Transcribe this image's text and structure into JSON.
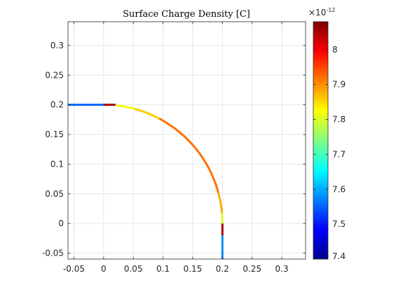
{
  "chart_data": {
    "type": "line",
    "title": "Surface Charge Density [C]",
    "xlabel": "",
    "ylabel": "",
    "xlim": [
      -0.06,
      0.34
    ],
    "ylim": [
      -0.06,
      0.34
    ],
    "grid": true,
    "x_ticks": [
      -0.05,
      0,
      0.05,
      0.1,
      0.15,
      0.2,
      0.25,
      0.3
    ],
    "x_tick_labels": [
      "-0.05",
      "0",
      "0.05",
      "0.1",
      "0.15",
      "0.2",
      "0.25",
      "0.3"
    ],
    "y_ticks": [
      -0.05,
      0,
      0.05,
      0.1,
      0.15,
      0.2,
      0.25,
      0.3
    ],
    "y_tick_labels": [
      "-0.05",
      "0",
      "0.05",
      "0.1",
      "0.15",
      "0.2",
      "0.25",
      "0.3"
    ],
    "colormap": "jet",
    "colorbar": {
      "min": 7.4,
      "max": 8.08,
      "ticks": [
        7.4,
        7.5,
        7.6,
        7.7,
        7.8,
        7.9,
        8
      ],
      "tick_labels": [
        "7.4",
        "7.5",
        "7.6",
        "7.7",
        "7.8",
        "7.9",
        "8"
      ],
      "exponent_label": "×10",
      "exponent_power": "-12"
    },
    "segments": [
      {
        "points": [
          [
            -0.06,
            0.2
          ],
          [
            0.0,
            0.2
          ]
        ],
        "value": 7.55
      },
      {
        "points": [
          [
            0.0,
            0.2
          ],
          [
            0.02,
            0.2
          ]
        ],
        "value": 8.05
      },
      {
        "arc": {
          "cx": 0.0,
          "cy": 0.0,
          "r": 0.2,
          "start_deg": 84,
          "end_deg": 75
        },
        "value": 7.82
      },
      {
        "arc": {
          "cx": 0.0,
          "cy": 0.0,
          "r": 0.2,
          "start_deg": 75,
          "end_deg": 62
        },
        "value": 7.86
      },
      {
        "arc": {
          "cx": 0.0,
          "cy": 0.0,
          "r": 0.2,
          "start_deg": 62,
          "end_deg": 15
        },
        "value": 7.92
      },
      {
        "arc": {
          "cx": 0.0,
          "cy": 0.0,
          "r": 0.2,
          "start_deg": 15,
          "end_deg": 5
        },
        "value": 7.88
      },
      {
        "arc": {
          "cx": 0.0,
          "cy": 0.0,
          "r": 0.2,
          "start_deg": 5,
          "end_deg": 0
        },
        "value": 7.8
      },
      {
        "points": [
          [
            0.2,
            0.0
          ],
          [
            0.2,
            -0.02
          ]
        ],
        "value": 8.05
      },
      {
        "points": [
          [
            0.2,
            -0.02
          ],
          [
            0.2,
            -0.06
          ]
        ],
        "value": 7.58
      }
    ]
  }
}
